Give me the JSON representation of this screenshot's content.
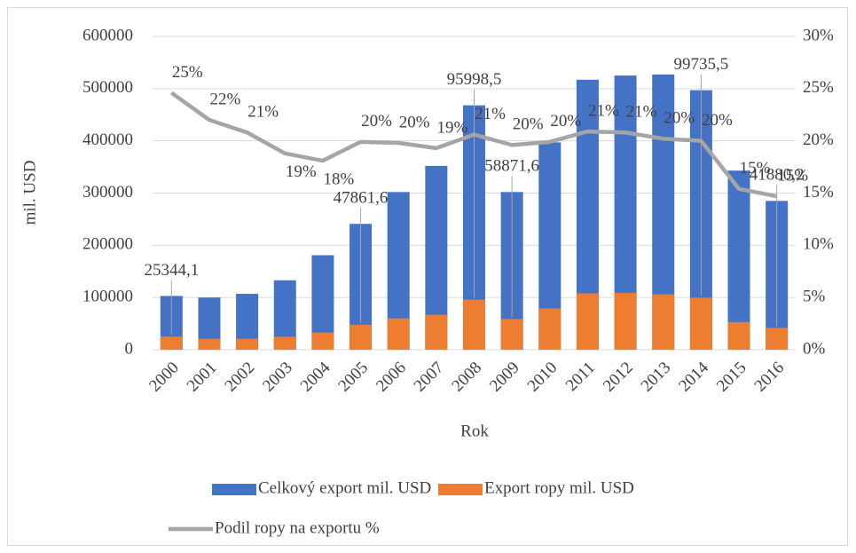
{
  "chart_data": {
    "type": "bar",
    "categories": [
      "2000",
      "2001",
      "2002",
      "2003",
      "2004",
      "2005",
      "2006",
      "2007",
      "2008",
      "2009",
      "2010",
      "2011",
      "2012",
      "2013",
      "2014",
      "2015",
      "2016"
    ],
    "x_label": "Rok",
    "y_label": "mil. USD",
    "series": [
      {
        "name": "Celkový export mil. USD",
        "type": "bar",
        "color": "#4472c4",
        "values": [
          103000,
          100000,
          107000,
          133000,
          181000,
          241000,
          302000,
          352000,
          468000,
          302000,
          397000,
          517000,
          525000,
          527000,
          497000,
          343000,
          285000
        ]
      },
      {
        "name": "Export ropy mil. USD",
        "type": "bar",
        "color": "#ed7d31",
        "values": [
          25344.1,
          21000,
          21000,
          25000,
          33000,
          47861.6,
          60000,
          67000,
          95998.5,
          58871.6,
          79000,
          108000,
          109000,
          106000,
          99735.5,
          53000,
          41880.2
        ],
        "value_labels": [
          "25344,1",
          null,
          null,
          null,
          null,
          "47861,6",
          null,
          null,
          "95998,5",
          "58871,6",
          null,
          null,
          null,
          null,
          "99735,5",
          null,
          "41880,2"
        ]
      },
      {
        "name": "Podil ropy na exportu %",
        "type": "line",
        "axis": "y2",
        "color": "#a5a5a5",
        "values": [
          24.6,
          22,
          20.8,
          18.8,
          18.1,
          19.9,
          19.8,
          19.3,
          20.6,
          19.6,
          19.9,
          20.9,
          20.8,
          20.2,
          20,
          15.4,
          14.7
        ],
        "value_labels": [
          "25%",
          "22%",
          "21%",
          "19%",
          "18%",
          "20%",
          "20%",
          "19%",
          "21%",
          "20%",
          "20%",
          "21%",
          "21%",
          "20%",
          "20%",
          "15%",
          "15%"
        ]
      }
    ],
    "ylim": [
      0,
      600000
    ],
    "yticks": [
      0,
      100000,
      200000,
      300000,
      400000,
      500000,
      600000
    ],
    "y2lim": [
      0,
      30
    ],
    "y2ticks": [
      {
        "value": 0,
        "label": "0%"
      },
      {
        "value": 5,
        "label": "5%"
      },
      {
        "value": 10,
        "label": "10%"
      },
      {
        "value": 15,
        "label": "15%"
      },
      {
        "value": 20,
        "label": "20%"
      },
      {
        "value": 25,
        "label": "25%"
      },
      {
        "value": 30,
        "label": "30%"
      }
    ],
    "grid": true,
    "legend": "bottom"
  }
}
